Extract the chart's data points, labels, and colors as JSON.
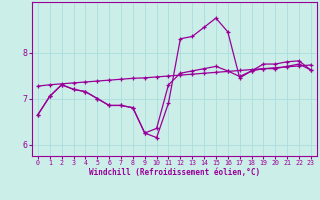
{
  "xlabel": "Windchill (Refroidissement éolien,°C)",
  "bg_color": "#cceee8",
  "line_color": "#990099",
  "grid_color": "#aadddd",
  "x_ticks": [
    0,
    1,
    2,
    3,
    4,
    5,
    6,
    7,
    8,
    9,
    10,
    11,
    12,
    13,
    14,
    15,
    16,
    17,
    18,
    19,
    20,
    21,
    22,
    23
  ],
  "y_ticks": [
    6,
    7,
    8
  ],
  "ylim": [
    5.75,
    9.1
  ],
  "xlim": [
    -0.5,
    23.5
  ],
  "series1": {
    "x": [
      0,
      1,
      2,
      3,
      4,
      5,
      6,
      7,
      8,
      9,
      10,
      11,
      12,
      13,
      14,
      15,
      16,
      17,
      18,
      19,
      20,
      21,
      22,
      23
    ],
    "y": [
      6.65,
      7.05,
      7.3,
      7.2,
      7.15,
      7.0,
      6.85,
      6.85,
      6.8,
      6.25,
      6.15,
      6.9,
      8.3,
      8.35,
      8.55,
      8.75,
      8.45,
      7.45,
      7.6,
      7.75,
      7.75,
      7.8,
      7.82,
      7.62
    ]
  },
  "series2": {
    "x": [
      0,
      1,
      2,
      3,
      4,
      5,
      6,
      7,
      8,
      9,
      10,
      11,
      12,
      13,
      14,
      15,
      16,
      17,
      18,
      19,
      20,
      21,
      22,
      23
    ],
    "y": [
      6.65,
      7.05,
      7.3,
      7.2,
      7.15,
      7.0,
      6.85,
      6.85,
      6.8,
      6.25,
      6.35,
      7.3,
      7.55,
      7.6,
      7.65,
      7.7,
      7.6,
      7.48,
      7.6,
      7.65,
      7.65,
      7.7,
      7.75,
      7.62
    ]
  },
  "series3": {
    "x": [
      0,
      1,
      2,
      3,
      4,
      5,
      6,
      7,
      8,
      9,
      10,
      11,
      12,
      13,
      14,
      15,
      16,
      17,
      18,
      19,
      20,
      21,
      22,
      23
    ],
    "y": [
      7.27,
      7.3,
      7.32,
      7.34,
      7.36,
      7.38,
      7.4,
      7.42,
      7.44,
      7.45,
      7.47,
      7.49,
      7.51,
      7.53,
      7.55,
      7.57,
      7.59,
      7.61,
      7.63,
      7.65,
      7.67,
      7.69,
      7.71,
      7.73
    ]
  }
}
